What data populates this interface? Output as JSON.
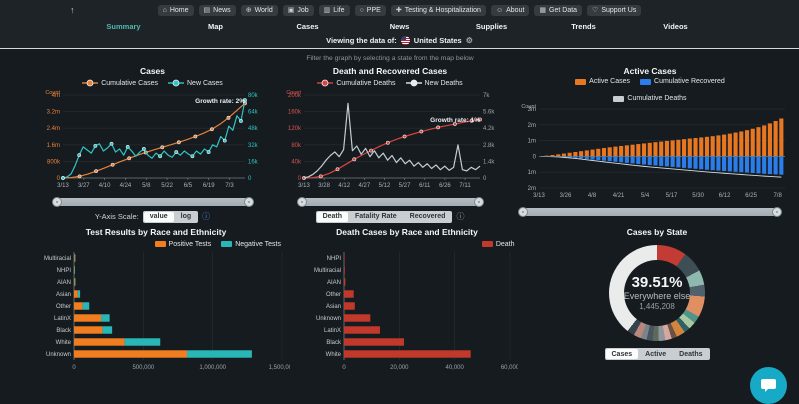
{
  "nav": {
    "up_arrow": "↑",
    "buttons": [
      {
        "icon": "home-icon",
        "glyph": "⌂",
        "label": "Home"
      },
      {
        "icon": "news-icon",
        "glyph": "▤",
        "label": "News"
      },
      {
        "icon": "world-icon",
        "glyph": "⊕",
        "label": "World"
      },
      {
        "icon": "job-icon",
        "glyph": "▣",
        "label": "Job"
      },
      {
        "icon": "life-icon",
        "glyph": "▥",
        "label": "Life"
      },
      {
        "icon": "ppe-icon",
        "glyph": "○",
        "label": "PPE"
      },
      {
        "icon": "testing-icon",
        "glyph": "✚",
        "label": "Testing & Hospitalization"
      },
      {
        "icon": "about-icon",
        "glyph": "☺",
        "label": "About"
      },
      {
        "icon": "get-data-icon",
        "glyph": "▦",
        "label": "Get Data"
      },
      {
        "icon": "support-icon",
        "glyph": "♡",
        "label": "Support Us"
      }
    ]
  },
  "tabs": {
    "items": [
      "Summary",
      "Map",
      "Cases",
      "News",
      "Supplies",
      "Trends",
      "Videos"
    ],
    "active": "Summary"
  },
  "viewing": {
    "prefix": "Viewing the data of:",
    "country": "United States",
    "gear_icon": "⚙"
  },
  "controls": {
    "y_axis_scale": {
      "label": "Y-Axis Scale:",
      "options": [
        "value",
        "log"
      ],
      "selected": "value",
      "info_icon": "ⓘ"
    },
    "death_mode": {
      "options": [
        "Death",
        "Fatality Rate",
        "Recovered"
      ],
      "selected": "Death",
      "info_icon": "ⓘ"
    },
    "state_mode": {
      "options": [
        "Cases",
        "Active",
        "Deaths"
      ],
      "selected": "Cases"
    }
  },
  "chart_data": {
    "cases": {
      "type": "line",
      "title": "Cases",
      "growth_label": "Growth rate: 2%",
      "legend": [
        {
          "label": "Cumulative Cases",
          "color": "#e8833a"
        },
        {
          "label": "New Cases",
          "color": "#2fc5c5"
        }
      ],
      "y_left": {
        "title": "Count",
        "ticks": [
          "4m",
          "3.2m",
          "2.4m",
          "1.6m",
          "800k",
          "0"
        ],
        "max": 4000000,
        "color": "#e8833a"
      },
      "y_right": {
        "ticks": [
          "80k",
          "64k",
          "48k",
          "32k",
          "16k",
          "0"
        ],
        "max": 80000,
        "color": "#2fc5c5"
      },
      "x_ticks": [
        "3/13",
        "3/27",
        "4/10",
        "4/24",
        "5/8",
        "5/22",
        "6/5",
        "6/19",
        "7/3"
      ],
      "series": [
        {
          "name": "Cumulative Cases",
          "axis": "left",
          "color": "#e8833a",
          "markers": true,
          "values": [
            0,
            20000,
            80000,
            190000,
            330000,
            480000,
            640000,
            800000,
            950000,
            1100000,
            1230000,
            1360000,
            1480000,
            1600000,
            1720000,
            1850000,
            2000000,
            2160000,
            2350000,
            2600000,
            2900000,
            3250000,
            3600000
          ]
        },
        {
          "name": "New Cases",
          "axis": "right",
          "color": "#2fc5c5",
          "markers": true,
          "values": [
            0,
            1000,
            4000,
            12000,
            22000,
            30000,
            27000,
            24000,
            31000,
            33000,
            26000,
            29000,
            33000,
            25000,
            28000,
            22000,
            30000,
            26000,
            21000,
            25000,
            28000,
            22000,
            19000,
            24000,
            21000,
            26000,
            22000,
            20000,
            25000,
            22000,
            26000,
            23000,
            21000,
            26000,
            23000,
            28000,
            25000,
            32000,
            30000,
            40000,
            36000,
            50000,
            46000,
            60000,
            55000,
            75000
          ]
        }
      ]
    },
    "deaths": {
      "type": "line",
      "title": "Death and Recovered Cases",
      "hint": "Filter the graph by selecting a state from the map below",
      "growth_label": "Growth rate: 1%",
      "legend": [
        {
          "label": "Cumulative Deaths",
          "color": "#d64541"
        },
        {
          "label": "New Deaths",
          "color": "#e8ecef"
        }
      ],
      "y_left": {
        "title": "Count",
        "ticks": [
          "200k",
          "160k",
          "120k",
          "80k",
          "40k",
          "0"
        ],
        "max": 200000,
        "color": "#d9534f"
      },
      "y_right": {
        "ticks": [
          "7k",
          "5.6k",
          "4.2k",
          "2.8k",
          "1.4k",
          "0"
        ],
        "max": 7000,
        "color": "#9aa3ab"
      },
      "x_ticks": [
        "3/13",
        "3/28",
        "4/12",
        "4/27",
        "5/12",
        "5/27",
        "6/11",
        "6/26",
        "7/11"
      ],
      "series": [
        {
          "name": "Cumulative Deaths",
          "axis": "left",
          "color": "#d64541",
          "markers": true,
          "values": [
            0,
            800,
            4000,
            11000,
            21000,
            33000,
            45000,
            56000,
            66000,
            76000,
            85000,
            93000,
            100000,
            106000,
            112000,
            117000,
            122000,
            126000,
            130000,
            134000,
            138000,
            141000
          ]
        },
        {
          "name": "New Deaths",
          "axis": "right",
          "color": "#c3ccd3",
          "markers": false,
          "values": [
            0,
            100,
            300,
            600,
            1000,
            1500,
            1900,
            2200,
            1800,
            2400,
            6300,
            2300,
            2700,
            2000,
            2500,
            1800,
            2300,
            1700,
            2100,
            1500,
            1900,
            1300,
            1700,
            1200,
            1500,
            1000,
            1300,
            900,
            1200,
            800,
            1100,
            700,
            1000,
            650,
            900,
            2800,
            700,
            600,
            900,
            700,
            1000
          ]
        }
      ]
    },
    "active": {
      "type": "mirrored-bar",
      "title": "Active Cases",
      "legend": [
        {
          "label": "Active Cases",
          "color": "#e87722"
        },
        {
          "label": "Cumulative Recovered",
          "color": "#2b7de9"
        },
        {
          "label": "Cumulative Deaths",
          "color": "#c8cdd1"
        }
      ],
      "y": {
        "title": "Count",
        "ticks": [
          "3m",
          "2m",
          "1m",
          "0",
          "1m",
          "2m"
        ],
        "color": "#aab3b9"
      },
      "x_ticks": [
        "3/13",
        "3/26",
        "4/8",
        "4/21",
        "5/4",
        "5/17",
        "5/30",
        "6/12",
        "6/25",
        "7/8"
      ],
      "active_values": [
        20000,
        50000,
        90000,
        130000,
        180000,
        230000,
        280000,
        330000,
        380000,
        430000,
        480000,
        530000,
        575000,
        620000,
        660000,
        700000,
        740000,
        780000,
        820000,
        860000,
        900000,
        940000,
        980000,
        1015000,
        1050000,
        1090000,
        1130000,
        1165000,
        1200000,
        1240000,
        1280000,
        1330000,
        1380000,
        1440000,
        1510000,
        1580000,
        1660000,
        1750000,
        1850000,
        1960000,
        2090000,
        2240000,
        2400000
      ],
      "recovered_values": [
        0,
        5000,
        15000,
        30000,
        50000,
        75000,
        100000,
        130000,
        165000,
        200000,
        235000,
        270000,
        305000,
        340000,
        375000,
        410000,
        445000,
        480000,
        515000,
        545000,
        575000,
        605000,
        635000,
        665000,
        695000,
        725000,
        755000,
        785000,
        815000,
        845000,
        875000,
        900000,
        925000,
        950000,
        975000,
        1000000,
        1025000,
        1050000,
        1075000,
        1100000,
        1120000,
        1140000,
        1160000
      ],
      "deaths_values": [
        0,
        500,
        2000,
        6000,
        12000,
        20000,
        30000,
        40000,
        50000,
        60000,
        69000,
        77000,
        84000,
        91000,
        97000,
        103000,
        108000,
        112000,
        116000,
        119000,
        122000,
        125000,
        127000,
        129000,
        131000,
        133000,
        135000,
        136500,
        138000,
        139000,
        140000,
        141000,
        142000,
        143000,
        144000,
        145000,
        146000,
        147000,
        148000,
        149000,
        150000,
        151000,
        152000
      ]
    },
    "test_race": {
      "type": "hbar-stacked",
      "title": "Test Results by Race and Ethnicity",
      "legend": [
        {
          "label": "Positive Tests",
          "color": "#f07d1f"
        },
        {
          "label": "Negative Tests",
          "color": "#29b6b6"
        }
      ],
      "categories": [
        "Multiracial",
        "NHPI",
        "AIAN",
        "Asian",
        "Other",
        "LatinX",
        "Black",
        "White",
        "Unknown"
      ],
      "series": [
        {
          "name": "Positive Tests",
          "color": "#f07d1f",
          "values": [
            6000,
            2500,
            6500,
            28000,
            62000,
            195000,
            205000,
            365000,
            815000
          ]
        },
        {
          "name": "Negative Tests",
          "color": "#29b6b6",
          "values": [
            3000,
            1500,
            3000,
            16000,
            48000,
            62000,
            70000,
            257000,
            468000
          ]
        }
      ],
      "x_ticks": [
        "0",
        "500,000",
        "1,000,000",
        "1,500,000"
      ],
      "x_max": 1500000
    },
    "death_race": {
      "type": "hbar",
      "title": "Death Cases by Race and Ethnicity",
      "legend": [
        {
          "label": "Death",
          "color": "#c0392b"
        }
      ],
      "categories": [
        "NHPI",
        "Multiracial",
        "AIAN",
        "Other",
        "Asian",
        "Unknown",
        "LatinX",
        "Black",
        "White"
      ],
      "values": [
        150,
        300,
        500,
        3500,
        3900,
        9500,
        13000,
        21700,
        45800
      ],
      "color": "#c0392b",
      "x_ticks": [
        "0",
        "20,000",
        "40,000",
        "60,000"
      ],
      "x_max": 60000
    },
    "cases_by_state": {
      "type": "donut",
      "title": "Cases by State",
      "center": {
        "percent": "39.51%",
        "label": "Everywhere else",
        "value": "1,445,208"
      },
      "segments": [
        {
          "pct": 10.0,
          "color": "#c23b34"
        },
        {
          "pct": 7.2,
          "color": "#3f4d55"
        },
        {
          "pct": 5.0,
          "color": "#8fb8af"
        },
        {
          "pct": 4.0,
          "color": "#4f616b"
        },
        {
          "pct": 7.0,
          "color": "#e08f63"
        },
        {
          "pct": 2.5,
          "color": "#4f9488"
        },
        {
          "pct": 2.5,
          "color": "#a9c7a0"
        },
        {
          "pct": 2.0,
          "color": "#2f6065"
        },
        {
          "pct": 3.0,
          "color": "#d2853c"
        },
        {
          "pct": 1.8,
          "color": "#6d5044"
        },
        {
          "pct": 2.2,
          "color": "#d6a89d"
        },
        {
          "pct": 2.2,
          "color": "#8d969c"
        },
        {
          "pct": 2.0,
          "color": "#5d6a5a"
        },
        {
          "pct": 2.1,
          "color": "#49555e"
        },
        {
          "pct": 2.0,
          "color": "#7b8488"
        },
        {
          "pct": 2.49,
          "color": "#b9877b"
        },
        {
          "pct": 2.5,
          "color": "#35424a"
        },
        {
          "pct": 39.51,
          "color": "#e9eceb"
        }
      ]
    }
  },
  "chat": {
    "tooltip": "chat"
  }
}
